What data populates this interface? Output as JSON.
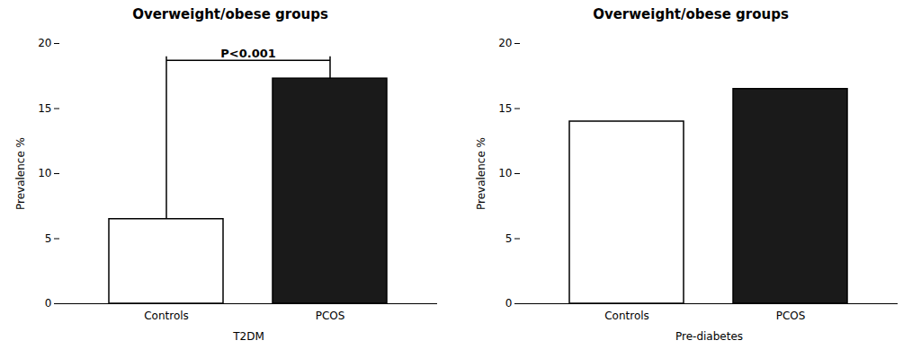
{
  "chart_data": [
    {
      "type": "bar",
      "title": "Overweight/obese groups",
      "categories": [
        "Controls",
        "PCOS"
      ],
      "values": [
        6.5,
        17.3
      ],
      "colors": [
        "#ffffff",
        "#1a1a1a"
      ],
      "ylabel": "Prevalence %",
      "xlabel": "T2DM",
      "ylim": [
        0,
        20
      ],
      "yticks": [
        0,
        5,
        10,
        15,
        20
      ],
      "grid": false,
      "annotations": [
        {
          "text": "P<0.001",
          "y": 18.9,
          "bracket_y": 18.7,
          "from": "Controls",
          "to": "PCOS"
        }
      ]
    },
    {
      "type": "bar",
      "title": "Overweight/obese groups",
      "categories": [
        "Controls",
        "PCOS"
      ],
      "values": [
        14.0,
        16.5
      ],
      "colors": [
        "#ffffff",
        "#1a1a1a"
      ],
      "ylabel": "Prevalence %",
      "xlabel": "Pre-diabetes",
      "ylim": [
        0,
        20
      ],
      "yticks": [
        0,
        5,
        10,
        15,
        20
      ],
      "grid": false
    }
  ]
}
